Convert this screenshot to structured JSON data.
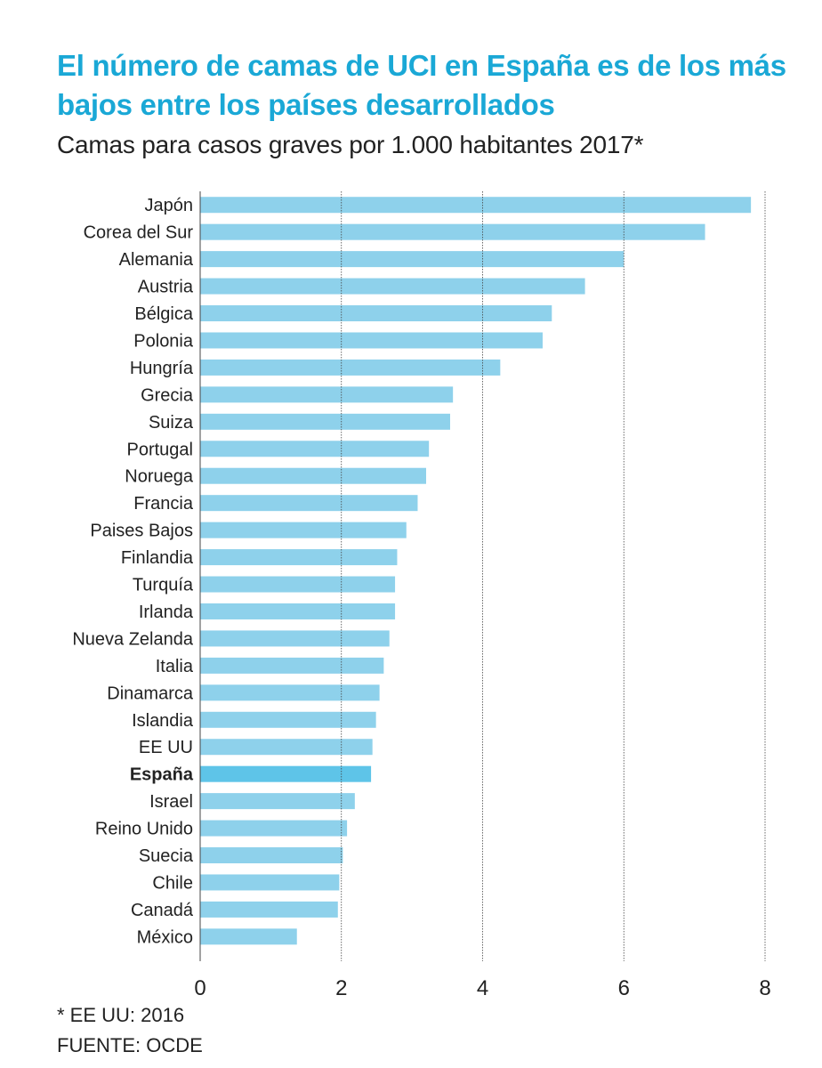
{
  "title": "El número de camas de UCI en España es de los más bajos entre los países desarrollados",
  "subtitle": "Camas para casos graves por 1.000 habitantes 2017*",
  "footnote": "* EE UU: 2016",
  "source": "FUENTE: OCDE",
  "colors": {
    "bar": "#8ed1eb",
    "highlight": "#5ec4e8",
    "title": "#1aa8d6",
    "grid": "#444444"
  },
  "chart_data": {
    "type": "bar",
    "orientation": "horizontal",
    "categories": [
      "Japón",
      "Corea del Sur",
      "Alemania",
      "Austria",
      "Bélgica",
      "Polonia",
      "Hungría",
      "Grecia",
      "Suiza",
      "Portugal",
      "Noruega",
      "Francia",
      "Paises Bajos",
      "Finlandia",
      "Turquía",
      "Irlanda",
      "Nueva Zelanda",
      "Italia",
      "Dinamarca",
      "Islandia",
      "EE UU",
      "España",
      "Israel",
      "Reino Unido",
      "Suecia",
      "Chile",
      "Canadá",
      "México"
    ],
    "values": [
      7.8,
      7.15,
      6.0,
      5.45,
      4.98,
      4.85,
      4.25,
      3.58,
      3.54,
      3.24,
      3.2,
      3.08,
      2.92,
      2.79,
      2.76,
      2.76,
      2.68,
      2.6,
      2.54,
      2.49,
      2.44,
      2.42,
      2.19,
      2.08,
      2.02,
      1.97,
      1.95,
      1.37
    ],
    "highlight": "España",
    "xlim": [
      0,
      8
    ],
    "xticks": [
      0,
      2,
      4,
      6,
      8
    ],
    "grid": true
  }
}
